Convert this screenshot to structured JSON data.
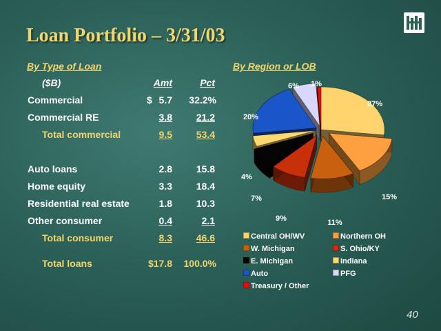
{
  "slide": {
    "title": "Loan Portfolio – 3/31/03",
    "page_number": "40"
  },
  "loan_type": {
    "heading": "By Type of Loan",
    "header": {
      "label": "($B)",
      "amt": "Amt",
      "pct": "Pct"
    },
    "rows": [
      {
        "label": "Commercial",
        "dollar": "$",
        "amt": "5.7",
        "pct": "32.2%"
      },
      {
        "label": "Commercial RE",
        "amt": "3.8",
        "pct": "21.2"
      },
      {
        "label": "Total commercial",
        "amt": "9.5",
        "pct": "53.4"
      },
      {
        "label": "Auto loans",
        "amt": "2.8",
        "pct": "15.8"
      },
      {
        "label": "Home equity",
        "amt": "3.3",
        "pct": "18.4"
      },
      {
        "label": "Residential real estate",
        "amt": "1.8",
        "pct": "10.3"
      },
      {
        "label": "Other consumer",
        "amt": "0.4",
        "pct": "2.1"
      },
      {
        "label": "Total consumer",
        "amt": "8.3",
        "pct": "46.6"
      },
      {
        "label": "Total loans",
        "amt": "$17.8",
        "pct": "100.0%"
      }
    ]
  },
  "region": {
    "heading": "By Region or LOB"
  },
  "chart_data": {
    "type": "pie",
    "labels": [
      "Central OH/WV",
      "Northern OH",
      "W. Michigan",
      "S. Ohio/KY",
      "E. Michigan",
      "Indiana",
      "Auto",
      "PFG",
      "Treasury / Other"
    ],
    "values": [
      27,
      15,
      11,
      9,
      7,
      4,
      20,
      6,
      1
    ],
    "value_labels": [
      "27%",
      "15%",
      "11%",
      "9%",
      "7%",
      "4%",
      "20%",
      "6%",
      "1%"
    ],
    "colors": [
      "#ffd36e",
      "#ffa040",
      "#c8600e",
      "#c8300a",
      "#050505",
      "#ffd870",
      "#1a56c8",
      "#d8d8ff",
      "#e01010"
    ],
    "legend_position": "bottom"
  }
}
